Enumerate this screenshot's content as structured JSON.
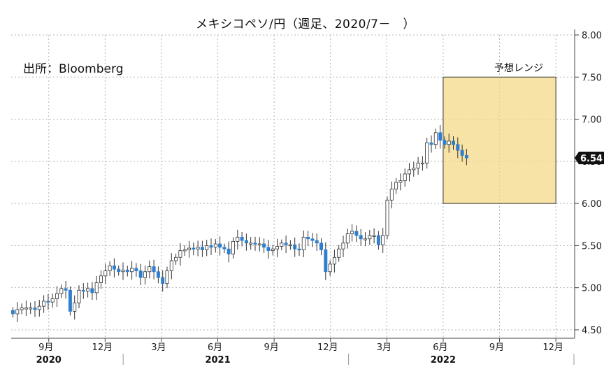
{
  "chart_data": {
    "type": "candlestick",
    "title": "メキシコペソ/円（週足、2020/7－　）",
    "source": "出所：Bloomberg",
    "forecast_label": "予想レンジ",
    "forecast_range": {
      "from": "2022-06",
      "to": "2022-12",
      "low": 6.0,
      "high": 7.5,
      "color": "#f5d98a"
    },
    "last_price_label": "6.54",
    "ylim": [
      4.4,
      8.0
    ],
    "yticks": [
      "8.00",
      "7.50",
      "7.00",
      "6.50",
      "6.00",
      "5.50",
      "5.00",
      "4.50"
    ],
    "ytick_values": [
      8.0,
      7.5,
      7.0,
      6.5,
      6.0,
      5.5,
      5.0,
      4.5
    ],
    "x_month_labels": [
      "9月",
      "12月",
      "3月",
      "6月",
      "9月",
      "12月",
      "3月",
      "6月",
      "9月",
      "12月"
    ],
    "x_month_dates": [
      "2020-09",
      "2020-12",
      "2021-03",
      "2021-06",
      "2021-09",
      "2021-12",
      "2022-03",
      "2022-06",
      "2022-09",
      "2022-12"
    ],
    "x_year_labels": [
      "2020",
      "2021",
      "2022"
    ],
    "x_year_dates": [
      "2020-09",
      "2021-06",
      "2022-06"
    ],
    "x_range": [
      "2020-07",
      "2023-01"
    ],
    "colors": {
      "up": "#ffffff",
      "down": "#2f7fd0",
      "wick": "#333333",
      "grid": "#b5b5b5"
    },
    "close": [
      4.69,
      4.74,
      4.76,
      4.76,
      4.76,
      4.74,
      4.78,
      4.84,
      4.83,
      4.87,
      4.93,
      4.99,
      4.97,
      4.72,
      4.82,
      4.97,
      4.96,
      4.99,
      4.94,
      5.06,
      5.14,
      5.2,
      5.26,
      5.22,
      5.19,
      5.21,
      5.19,
      5.23,
      5.2,
      5.12,
      5.19,
      5.25,
      5.19,
      5.12,
      5.05,
      5.2,
      5.32,
      5.36,
      5.44,
      5.45,
      5.47,
      5.46,
      5.48,
      5.45,
      5.5,
      5.48,
      5.52,
      5.48,
      5.46,
      5.4,
      5.55,
      5.6,
      5.56,
      5.53,
      5.53,
      5.52,
      5.52,
      5.48,
      5.44,
      5.46,
      5.49,
      5.53,
      5.51,
      5.51,
      5.46,
      5.45,
      5.6,
      5.58,
      5.56,
      5.53,
      5.45,
      5.19,
      5.28,
      5.36,
      5.46,
      5.53,
      5.64,
      5.67,
      5.62,
      5.58,
      5.58,
      5.62,
      5.62,
      5.51,
      5.62,
      6.04,
      6.17,
      6.25,
      6.27,
      6.35,
      6.4,
      6.42,
      6.48,
      6.48,
      6.72,
      6.7,
      6.84,
      6.75,
      6.7,
      6.74,
      6.7,
      6.63,
      6.57,
      6.54
    ]
  }
}
